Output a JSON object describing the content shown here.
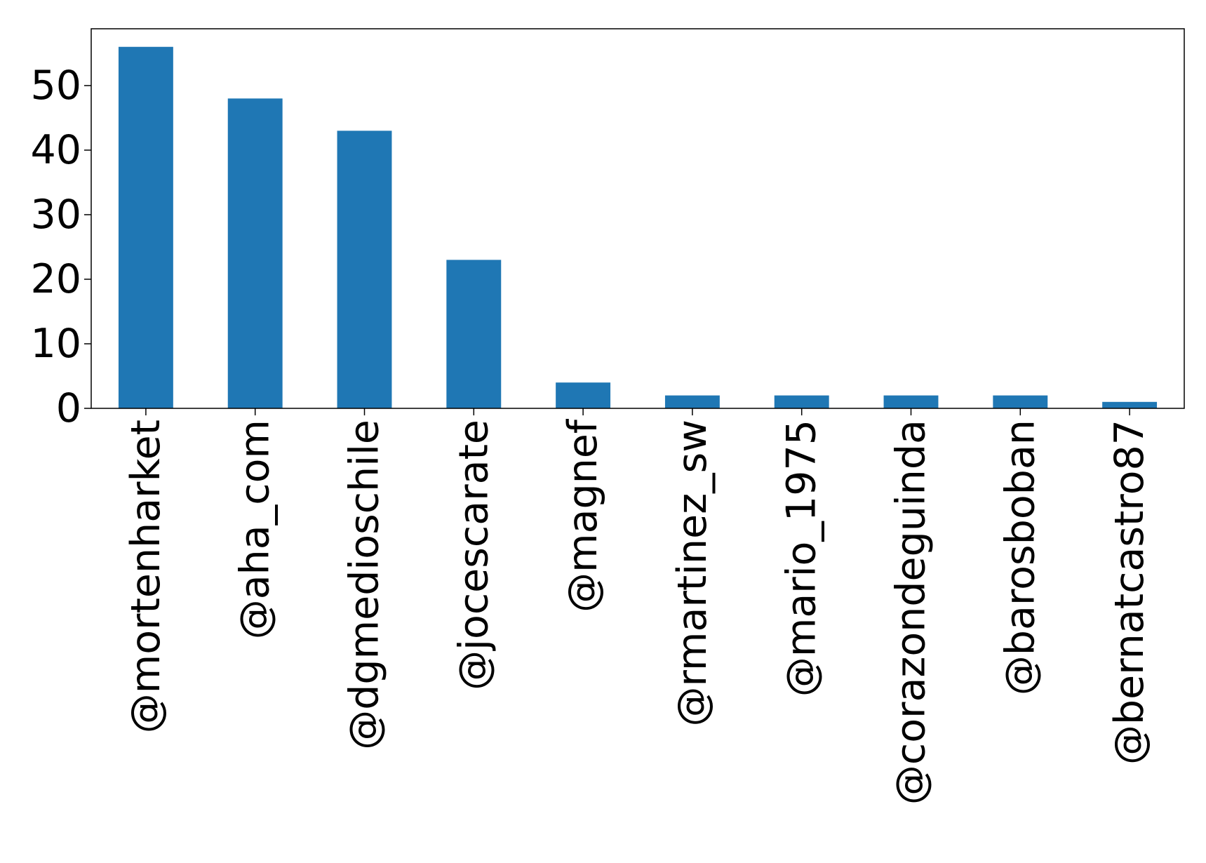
{
  "chart_data": {
    "type": "bar",
    "categories": [
      "@mortenharket",
      "@aha_com",
      "@dgmedioschile",
      "@jocescarate",
      "@magnef",
      "@rmartinez_sw",
      "@mario_1975",
      "@corazondeguinda",
      "@barosboban",
      "@bernatcastro87"
    ],
    "values": [
      56,
      48,
      43,
      23,
      4,
      2,
      2,
      2,
      2,
      1
    ],
    "ylim": [
      0,
      58.8
    ],
    "yticks": [
      0,
      10,
      20,
      30,
      40,
      50
    ],
    "bar_color": "#1f77b4",
    "title": "",
    "xlabel": "",
    "ylabel": "",
    "grid": false,
    "legend": "none"
  }
}
